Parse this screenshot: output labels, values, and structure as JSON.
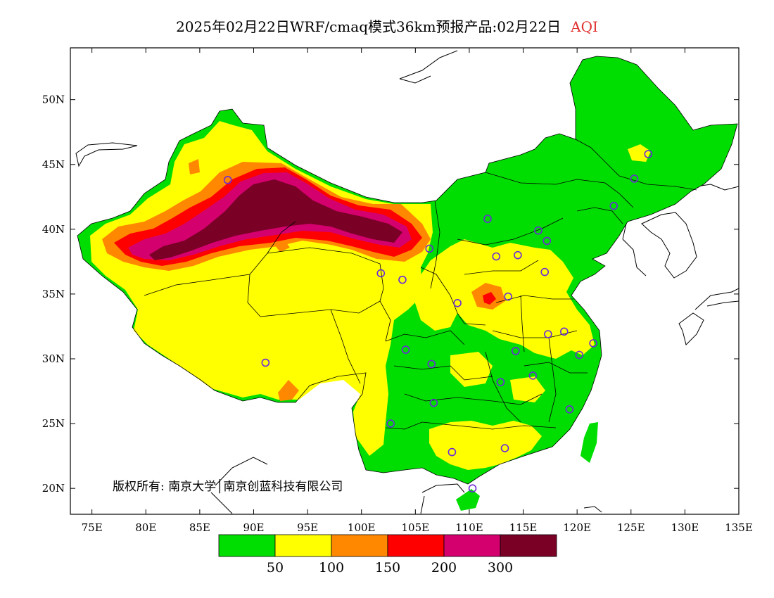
{
  "title": {
    "main": "2025年02月22日WRF/cmaq模式36km预报产品:02月22日",
    "variable": "AQI"
  },
  "axes": {
    "lat_labels": [
      "50N",
      "45N",
      "40N",
      "35N",
      "30N",
      "25N",
      "20N"
    ],
    "lon_labels": [
      "75E",
      "80E",
      "85E",
      "90E",
      "95E",
      "100E",
      "105E",
      "110E",
      "115E",
      "120E",
      "125E",
      "130E",
      "135E"
    ],
    "lat_values": [
      50,
      45,
      40,
      35,
      30,
      25,
      20
    ],
    "lon_values": [
      75,
      80,
      85,
      90,
      95,
      100,
      105,
      110,
      115,
      120,
      125,
      130,
      135
    ],
    "lon_range": [
      73,
      135
    ],
    "lat_range": [
      18,
      54
    ]
  },
  "colorbar": {
    "colors": [
      "#00dd00",
      "#ffff00",
      "#ff8800",
      "#ff0000",
      "#d4006e",
      "#7a0026"
    ],
    "labels": [
      "50",
      "100",
      "150",
      "200",
      "300"
    ]
  },
  "copyright": "版权所有: 南京大学│南京创蓝科技有限公司",
  "colors": {
    "good": "#00dd00",
    "moderate": "#ffff00",
    "usg": "#ff8800",
    "unhealthy": "#ff0000",
    "very_unhealthy": "#d4006e",
    "hazardous": "#7a0026",
    "city_marker": "#6a2cd8"
  },
  "cities": [
    {
      "lon": 87.6,
      "lat": 43.8
    },
    {
      "lon": 91.1,
      "lat": 29.7
    },
    {
      "lon": 101.8,
      "lat": 36.6
    },
    {
      "lon": 103.8,
      "lat": 36.1
    },
    {
      "lon": 106.3,
      "lat": 38.5
    },
    {
      "lon": 104.1,
      "lat": 30.7
    },
    {
      "lon": 106.5,
      "lat": 29.6
    },
    {
      "lon": 106.7,
      "lat": 26.6
    },
    {
      "lon": 102.7,
      "lat": 25.0
    },
    {
      "lon": 108.9,
      "lat": 34.3
    },
    {
      "lon": 111.7,
      "lat": 40.8
    },
    {
      "lon": 112.5,
      "lat": 37.9
    },
    {
      "lon": 114.5,
      "lat": 38.0
    },
    {
      "lon": 116.4,
      "lat": 39.9
    },
    {
      "lon": 117.2,
      "lat": 39.1
    },
    {
      "lon": 113.6,
      "lat": 34.8
    },
    {
      "lon": 117.0,
      "lat": 36.7
    },
    {
      "lon": 114.3,
      "lat": 30.6
    },
    {
      "lon": 112.9,
      "lat": 28.2
    },
    {
      "lon": 115.9,
      "lat": 28.7
    },
    {
      "lon": 117.3,
      "lat": 31.9
    },
    {
      "lon": 118.8,
      "lat": 32.1
    },
    {
      "lon": 120.2,
      "lat": 30.3
    },
    {
      "lon": 121.5,
      "lat": 31.2
    },
    {
      "lon": 119.3,
      "lat": 26.1
    },
    {
      "lon": 113.3,
      "lat": 23.1
    },
    {
      "lon": 108.4,
      "lat": 22.8
    },
    {
      "lon": 110.3,
      "lat": 20.0
    },
    {
      "lon": 123.4,
      "lat": 41.8
    },
    {
      "lon": 125.3,
      "lat": 43.9
    },
    {
      "lon": 126.6,
      "lat": 45.8
    }
  ]
}
